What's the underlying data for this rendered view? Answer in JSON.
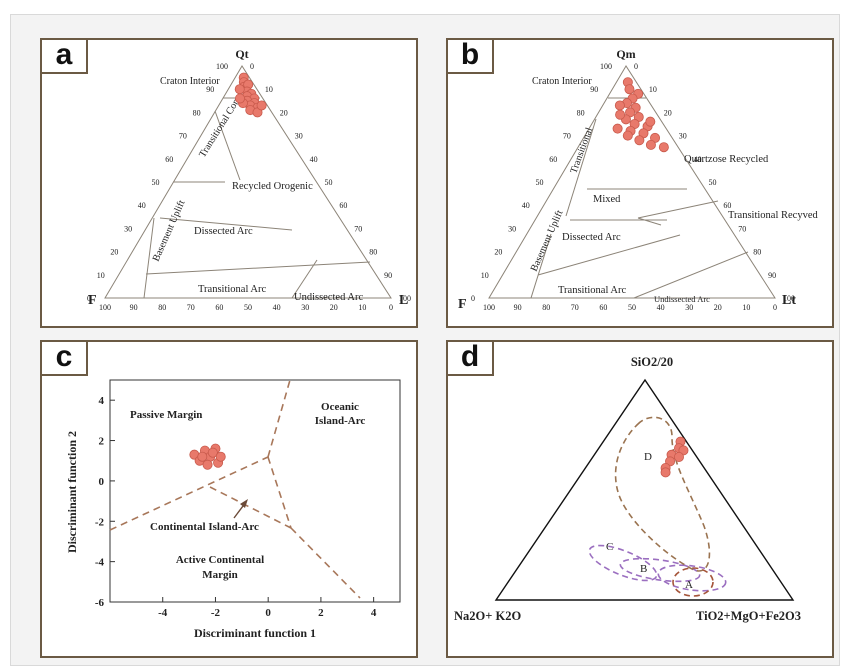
{
  "panels": {
    "a": {
      "label": "a",
      "apex_top": "Qt",
      "apex_left": "F",
      "apex_right": "L",
      "regions": {
        "craton_interior": "Craton Interior",
        "transitional_cont": "Transitional Cont.",
        "basement_uplift": "Basement Uplift",
        "recycled_orogenic": "Recycled Orogenic",
        "dissected_arc": "Dissected Arc",
        "transitional_arc": "Transitional Arc",
        "undissected_arc": "Undissected Arc"
      },
      "left_ticks": [
        "100",
        "90",
        "80",
        "70",
        "60",
        "50",
        "40",
        "30",
        "20",
        "10",
        "0"
      ],
      "right_ticks": [
        "0",
        "10",
        "20",
        "30",
        "40",
        "50",
        "60",
        "70",
        "80",
        "90",
        "100"
      ],
      "bottom_ticks": [
        "100",
        "90",
        "80",
        "70",
        "60",
        "50",
        "40",
        "30",
        "20",
        "10",
        "0"
      ]
    },
    "b": {
      "label": "b",
      "apex_top": "Qm",
      "apex_left": "F",
      "apex_right": "Lt",
      "regions": {
        "craton_interior": "Craton Interior",
        "transitional": "Transitional",
        "basement_uplift": "Basement Uplift",
        "quartzose_recycled": "Quartzose Recycled",
        "mixed": "Mixed",
        "transitional_recycled": "Transitional Recyved",
        "dissected_arc": "Dissected Arc",
        "transitional_arc": "Transitional Arc",
        "undissected_arc": "Undissected Arc"
      },
      "left_ticks": [
        "100",
        "90",
        "80",
        "70",
        "60",
        "50",
        "40",
        "30",
        "20",
        "10",
        "0"
      ],
      "right_ticks": [
        "0",
        "10",
        "20",
        "30",
        "40",
        "50",
        "60",
        "70",
        "80",
        "90",
        "100"
      ],
      "bottom_ticks": [
        "100",
        "90",
        "80",
        "70",
        "60",
        "50",
        "40",
        "30",
        "20",
        "10",
        "0"
      ]
    },
    "c": {
      "label": "c",
      "xlabel": "Discriminant function 1",
      "ylabel": "Discriminant function 2",
      "xticks": [
        "-4",
        "-2",
        "0",
        "2",
        "4"
      ],
      "yticks": [
        "4",
        "2",
        "0",
        "-2",
        "-4",
        "-6"
      ],
      "regions": {
        "passive_margin": "Passive Margin",
        "oceanic_l1": "Oceanic",
        "oceanic_l2": "Island-Arc",
        "continental_island_arc": "Continental Island-Arc",
        "active_l1": "Active Continental",
        "active_l2": "Margin"
      }
    },
    "d": {
      "label": "d",
      "apex_top": "SiO2/20",
      "apex_left": "Na2O+ K2O",
      "apex_right": "TiO2+MgO+Fe2O3",
      "fields": {
        "a": "A",
        "b": "B",
        "c": "C",
        "d": "D"
      }
    }
  },
  "colors": {
    "frame": "#6b5a44",
    "point": "#e8796b",
    "point_edge": "#c85a4c",
    "boundary": "#9a8e80",
    "dashed": "#a8775a",
    "field_purple": "#9b6fc0",
    "field_brown": "#a5553a"
  },
  "chart_data": [
    {
      "panel": "a",
      "type": "scatter",
      "ternary": true,
      "axes": [
        "Qt",
        "F",
        "L"
      ],
      "points": [
        {
          "Qt": 95,
          "F": 2,
          "L": 3
        },
        {
          "Qt": 93,
          "F": 3,
          "L": 4
        },
        {
          "Qt": 91,
          "F": 4,
          "L": 5
        },
        {
          "Qt": 92,
          "F": 2,
          "L": 6
        },
        {
          "Qt": 89,
          "F": 4,
          "L": 7
        },
        {
          "Qt": 88,
          "F": 3,
          "L": 9
        },
        {
          "Qt": 87,
          "F": 5,
          "L": 8
        },
        {
          "Qt": 86,
          "F": 3,
          "L": 11
        },
        {
          "Qt": 85,
          "F": 6,
          "L": 9
        },
        {
          "Qt": 84,
          "F": 4,
          "L": 12
        },
        {
          "Qt": 83,
          "F": 6,
          "L": 11
        },
        {
          "Qt": 82,
          "F": 4,
          "L": 14
        },
        {
          "Qt": 81,
          "F": 7,
          "L": 12
        },
        {
          "Qt": 80,
          "F": 5,
          "L": 15
        },
        {
          "Qt": 84,
          "F": 8,
          "L": 8
        },
        {
          "Qt": 90,
          "F": 6,
          "L": 4
        },
        {
          "Qt": 86,
          "F": 8,
          "L": 6
        },
        {
          "Qt": 83,
          "F": 2,
          "L": 15
        }
      ]
    },
    {
      "panel": "b",
      "type": "scatter",
      "ternary": true,
      "axes": [
        "Qm",
        "F",
        "Lt"
      ],
      "points": [
        {
          "Qm": 93,
          "F": 3,
          "Lt": 4
        },
        {
          "Qm": 90,
          "F": 4,
          "Lt": 6
        },
        {
          "Qm": 88,
          "F": 2,
          "Lt": 10
        },
        {
          "Qm": 86,
          "F": 5,
          "Lt": 9
        },
        {
          "Qm": 84,
          "F": 8,
          "Lt": 8
        },
        {
          "Qm": 82,
          "F": 6,
          "Lt": 12
        },
        {
          "Qm": 80,
          "F": 9,
          "Lt": 11
        },
        {
          "Qm": 78,
          "F": 7,
          "Lt": 15
        },
        {
          "Qm": 77,
          "F": 12,
          "Lt": 11
        },
        {
          "Qm": 75,
          "F": 10,
          "Lt": 15
        },
        {
          "Qm": 74,
          "F": 6,
          "Lt": 20
        },
        {
          "Qm": 72,
          "F": 13,
          "Lt": 15
        },
        {
          "Qm": 71,
          "F": 9,
          "Lt": 20
        },
        {
          "Qm": 70,
          "F": 15,
          "Lt": 15
        },
        {
          "Qm": 69,
          "F": 6,
          "Lt": 25
        },
        {
          "Qm": 68,
          "F": 12,
          "Lt": 20
        },
        {
          "Qm": 66,
          "F": 9,
          "Lt": 25
        },
        {
          "Qm": 65,
          "F": 5,
          "Lt": 30
        },
        {
          "Qm": 79,
          "F": 13,
          "Lt": 8
        },
        {
          "Qm": 83,
          "F": 11,
          "Lt": 6
        },
        {
          "Qm": 76,
          "F": 4,
          "Lt": 20
        },
        {
          "Qm": 73,
          "F": 17,
          "Lt": 10
        }
      ]
    },
    {
      "panel": "c",
      "type": "scatter",
      "x_axis": "Discriminant function 1",
      "y_axis": "Discriminant function 2",
      "xlim": [
        -6,
        5
      ],
      "ylim": [
        -6,
        5
      ],
      "points": [
        {
          "x": -2.8,
          "y": 1.3
        },
        {
          "x": -2.6,
          "y": 1.0
        },
        {
          "x": -2.4,
          "y": 1.5
        },
        {
          "x": -2.2,
          "y": 1.2
        },
        {
          "x": -2.0,
          "y": 1.6
        },
        {
          "x": -2.3,
          "y": 0.8
        },
        {
          "x": -1.9,
          "y": 0.9
        },
        {
          "x": -2.1,
          "y": 1.4
        },
        {
          "x": -2.5,
          "y": 1.2
        },
        {
          "x": -1.8,
          "y": 1.2
        }
      ]
    },
    {
      "panel": "d",
      "type": "scatter",
      "ternary": true,
      "axes": [
        "SiO2/20",
        "Na2O+ K2O",
        "TiO2+MgO+Fe2O3"
      ],
      "points": [
        {
          "t": 0.72,
          "r": 0.26
        },
        {
          "t": 0.69,
          "r": 0.27
        },
        {
          "t": 0.66,
          "r": 0.26
        },
        {
          "t": 0.68,
          "r": 0.29
        },
        {
          "t": 0.63,
          "r": 0.27
        },
        {
          "t": 0.6,
          "r": 0.27
        },
        {
          "t": 0.58,
          "r": 0.28
        },
        {
          "t": 0.65,
          "r": 0.29
        }
      ]
    }
  ]
}
